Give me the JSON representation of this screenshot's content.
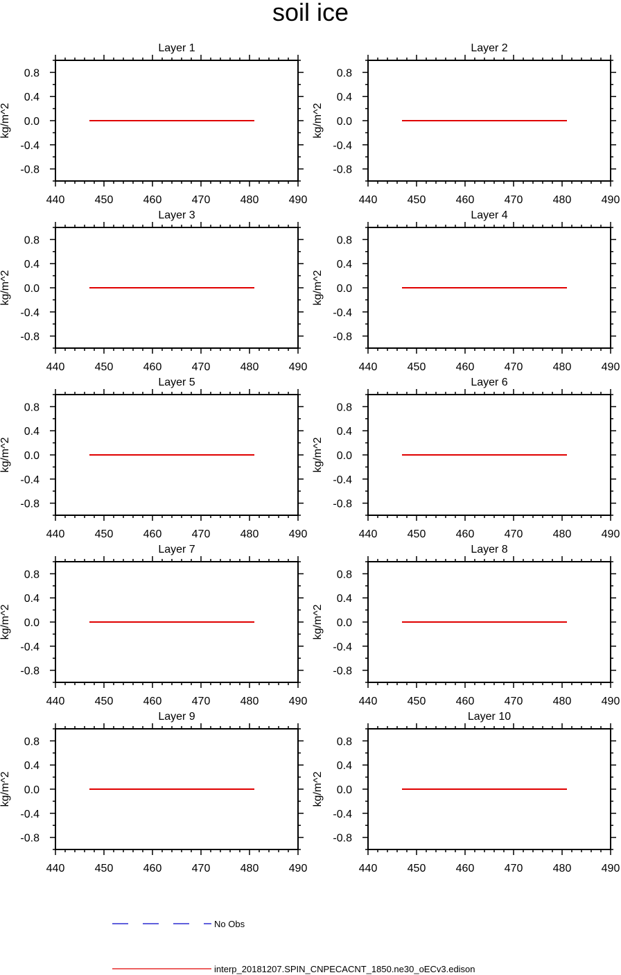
{
  "chart_data": {
    "type": "line",
    "title": "soil ice",
    "ylabel": "kg/m^2",
    "xlim": [
      440,
      490
    ],
    "ylim": [
      -1,
      1
    ],
    "x_ticks": [
      440,
      450,
      460,
      470,
      480,
      490
    ],
    "x_tick_labels": [
      "440",
      "450",
      "460",
      "470",
      "480",
      "490"
    ],
    "y_ticks": [
      0.8,
      0.4,
      0.0,
      -0.4,
      -0.8
    ],
    "y_tick_labels": [
      "0.8",
      "0.4",
      "0.0",
      "-0.4",
      "-0.8"
    ],
    "panels": [
      {
        "title": "Layer 1"
      },
      {
        "title": "Layer 2"
      },
      {
        "title": "Layer 3"
      },
      {
        "title": "Layer 4"
      },
      {
        "title": "Layer 5"
      },
      {
        "title": "Layer 6"
      },
      {
        "title": "Layer 7"
      },
      {
        "title": "Layer 8"
      },
      {
        "title": "Layer 9"
      },
      {
        "title": "Layer 10"
      }
    ],
    "series": [
      {
        "name": "interp_20181207.SPIN_CNPECACNT_1850.ne30_oECv3.edison",
        "color": "#e00000",
        "style": "solid",
        "x": [
          447,
          481
        ],
        "y": [
          0.0,
          0.0
        ]
      }
    ],
    "legend": [
      {
        "label": "No Obs",
        "color": "#0000c8",
        "style": "dashed"
      },
      {
        "label": "interp_20181207.SPIN_CNPECACNT_1850.ne30_oECv3.edison",
        "color": "#e00000",
        "style": "solid"
      }
    ]
  }
}
